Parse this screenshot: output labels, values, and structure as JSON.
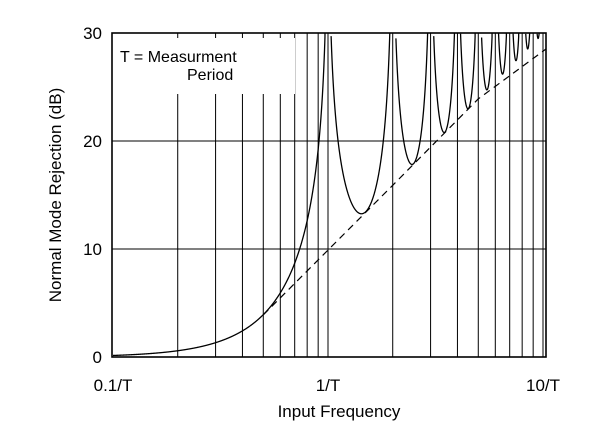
{
  "chart_data": {
    "type": "line",
    "xlabel": "Input Frequency",
    "ylabel": "Normal Mode Rejection (dB)",
    "x_scale": "log",
    "xlim": [
      0.1,
      12
    ],
    "ylim": [
      0,
      30
    ],
    "x_ticks": [
      {
        "value": 0.1,
        "label": "0.1/T"
      },
      {
        "value": 1,
        "label": "1/T"
      },
      {
        "value": 10,
        "label": "10/T"
      }
    ],
    "y_ticks": [
      {
        "value": 0,
        "label": "0"
      },
      {
        "value": 10,
        "label": "10"
      },
      {
        "value": 20,
        "label": "20"
      },
      {
        "value": 30,
        "label": "30"
      }
    ],
    "grid": true,
    "annotation": {
      "line1": "T = Measurment",
      "line2": "Period"
    },
    "series": [
      {
        "style": "solid",
        "formula": "rejection_dB = -20*log10(|sin(pi*f*T)/(pi*f*T)|)",
        "x": [
          0.1,
          0.2,
          0.3,
          0.4,
          0.5,
          0.6,
          0.7,
          0.8,
          0.9,
          1.0,
          1.2,
          1.43,
          1.7,
          2.0,
          2.46,
          3.0,
          3.47,
          4.0,
          4.48,
          5.0,
          6.0,
          7.0,
          8.0,
          9.0,
          10.0,
          11.0
        ],
        "y": [
          0.01,
          0.6,
          1.2,
          2.2,
          3.9,
          6.0,
          8.8,
          12.9,
          19.5,
          30,
          20,
          13.5,
          20,
          30,
          17.9,
          30,
          20.8,
          30,
          22.9,
          30,
          30,
          30,
          30,
          30,
          30,
          30
        ]
      },
      {
        "style": "dashed",
        "description": "asymptote",
        "x": [
          0.5,
          1,
          2,
          5,
          11.5
        ],
        "y": [
          3.9,
          9.9,
          15.9,
          23.9,
          29.2
        ]
      }
    ]
  }
}
